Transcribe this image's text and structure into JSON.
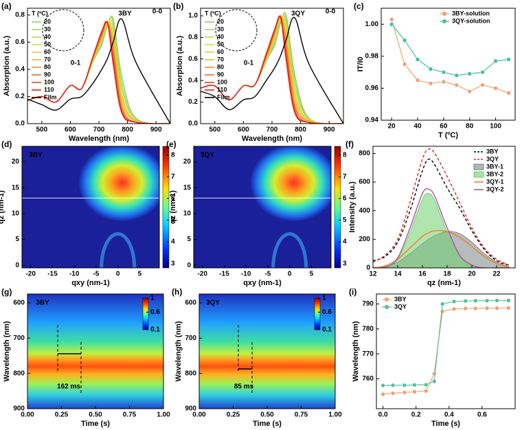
{
  "chart_data": [
    {
      "type": "line",
      "label": "(a)",
      "legend": "upper left",
      "legend_title": "T (ºC)",
      "xlabel": "Wavelength (nm)",
      "ylabel": "Absorption (a.u.)",
      "annotations": [
        "3BY",
        "0-0",
        "0-1"
      ],
      "xlim": [
        450,
        950
      ],
      "xticks": [
        500,
        600,
        700,
        800,
        900
      ],
      "ylim": [
        0,
        0.85
      ],
      "yticks": [
        {
          "value": 0,
          "label": "0.0"
        },
        0.2,
        0.4,
        0.6,
        0.8
      ],
      "x": [
        450,
        500,
        550,
        600,
        640,
        680,
        710,
        730,
        750,
        780,
        830,
        950
      ],
      "series": [
        {
          "name": "20",
          "color": "#8fd16a",
          "values": [
            0.17,
            0.2,
            0.16,
            0.28,
            0.26,
            0.46,
            0.58,
            0.72,
            0.77,
            0.35,
            0.04,
            0
          ]
        },
        {
          "name": "30",
          "color": "#a5d65c",
          "values": [
            0.17,
            0.2,
            0.16,
            0.28,
            0.26,
            0.46,
            0.6,
            0.73,
            0.75,
            0.3,
            0.03,
            0
          ]
        },
        {
          "name": "40",
          "color": "#bcd94f",
          "values": [
            0.17,
            0.2,
            0.16,
            0.28,
            0.26,
            0.47,
            0.61,
            0.74,
            0.72,
            0.26,
            0.03,
            0
          ]
        },
        {
          "name": "50",
          "color": "#d3d844",
          "values": [
            0.17,
            0.2,
            0.16,
            0.28,
            0.26,
            0.47,
            0.62,
            0.75,
            0.68,
            0.22,
            0.02,
            0
          ]
        },
        {
          "name": "60",
          "color": "#e6cc3a",
          "values": [
            0.17,
            0.2,
            0.16,
            0.28,
            0.26,
            0.48,
            0.63,
            0.75,
            0.64,
            0.19,
            0.02,
            0
          ]
        },
        {
          "name": "70",
          "color": "#f0b030",
          "values": [
            0.17,
            0.2,
            0.16,
            0.28,
            0.26,
            0.48,
            0.64,
            0.75,
            0.6,
            0.16,
            0.02,
            0
          ]
        },
        {
          "name": "80",
          "color": "#f29028",
          "values": [
            0.17,
            0.2,
            0.16,
            0.28,
            0.26,
            0.49,
            0.65,
            0.75,
            0.56,
            0.13,
            0.01,
            0
          ]
        },
        {
          "name": "90",
          "color": "#f06a22",
          "values": [
            0.17,
            0.2,
            0.16,
            0.28,
            0.26,
            0.49,
            0.66,
            0.74,
            0.52,
            0.11,
            0.01,
            0
          ]
        },
        {
          "name": "100",
          "color": "#ea4420",
          "values": [
            0.17,
            0.2,
            0.16,
            0.28,
            0.26,
            0.5,
            0.67,
            0.74,
            0.48,
            0.09,
            0.01,
            0
          ]
        },
        {
          "name": "110",
          "color": "#e0201c",
          "values": [
            0.17,
            0.2,
            0.16,
            0.28,
            0.26,
            0.5,
            0.68,
            0.74,
            0.44,
            0.08,
            0.01,
            0
          ]
        },
        {
          "name": "Film",
          "color": "#000000",
          "values": [
            0.18,
            0.14,
            0.1,
            0.18,
            0.2,
            0.3,
            0.4,
            0.48,
            0.6,
            0.77,
            0.45,
            0
          ]
        }
      ]
    },
    {
      "type": "line",
      "label": "(b)",
      "legend": "upper left",
      "legend_title": "T (ºC)",
      "xlabel": "Wavelength (nm)",
      "ylabel": "Absorption (a.u.)",
      "annotations": [
        "3QY",
        "0-0",
        "0-1"
      ],
      "xlim": [
        450,
        950
      ],
      "xticks": [
        500,
        600,
        700,
        800,
        900
      ],
      "ylim": [
        0,
        1.07
      ],
      "yticks": [
        {
          "value": 0,
          "label": "0.0"
        },
        0.2,
        0.4,
        0.6,
        0.8,
        {
          "value": 1,
          "label": "1.0"
        }
      ],
      "x": [
        450,
        500,
        550,
        600,
        640,
        680,
        710,
        730,
        750,
        780,
        830,
        950
      ],
      "series": [
        {
          "name": "20",
          "color": "#8fd16a",
          "values": [
            0.33,
            0.35,
            0.22,
            0.35,
            0.36,
            0.58,
            0.73,
            0.93,
            1.0,
            0.45,
            0.05,
            0
          ]
        },
        {
          "name": "30",
          "color": "#a5d65c",
          "values": [
            0.33,
            0.35,
            0.22,
            0.35,
            0.36,
            0.58,
            0.75,
            0.95,
            0.97,
            0.4,
            0.04,
            0
          ]
        },
        {
          "name": "40",
          "color": "#bcd94f",
          "values": [
            0.33,
            0.35,
            0.22,
            0.35,
            0.36,
            0.59,
            0.77,
            0.97,
            0.93,
            0.35,
            0.04,
            0
          ]
        },
        {
          "name": "50",
          "color": "#d3d844",
          "values": [
            0.33,
            0.35,
            0.22,
            0.35,
            0.36,
            0.6,
            0.79,
            0.99,
            0.88,
            0.3,
            0.03,
            0
          ]
        },
        {
          "name": "60",
          "color": "#e6cc3a",
          "values": [
            0.33,
            0.35,
            0.22,
            0.35,
            0.36,
            0.6,
            0.81,
            1.0,
            0.83,
            0.26,
            0.03,
            0
          ]
        },
        {
          "name": "70",
          "color": "#f0b030",
          "values": [
            0.33,
            0.35,
            0.22,
            0.35,
            0.36,
            0.61,
            0.83,
            1.0,
            0.78,
            0.22,
            0.02,
            0
          ]
        },
        {
          "name": "80",
          "color": "#f29028",
          "values": [
            0.33,
            0.35,
            0.22,
            0.35,
            0.36,
            0.62,
            0.85,
            1.0,
            0.73,
            0.18,
            0.02,
            0
          ]
        },
        {
          "name": "90",
          "color": "#f06a22",
          "values": [
            0.33,
            0.35,
            0.22,
            0.35,
            0.36,
            0.63,
            0.86,
            0.99,
            0.68,
            0.15,
            0.01,
            0
          ]
        },
        {
          "name": "100",
          "color": "#ea4420",
          "values": [
            0.33,
            0.35,
            0.22,
            0.35,
            0.36,
            0.64,
            0.87,
            0.99,
            0.63,
            0.12,
            0.01,
            0
          ]
        },
        {
          "name": "110",
          "color": "#e0201c",
          "values": [
            0.33,
            0.35,
            0.22,
            0.35,
            0.36,
            0.65,
            0.88,
            0.98,
            0.58,
            0.1,
            0.01,
            0
          ]
        },
        {
          "name": "Film",
          "color": "#000000",
          "values": [
            0.3,
            0.25,
            0.13,
            0.22,
            0.25,
            0.4,
            0.52,
            0.63,
            0.78,
            0.98,
            0.55,
            0
          ]
        }
      ]
    },
    {
      "type": "scatter",
      "label": "(c)",
      "legend": "upper right",
      "xlabel": "T (ºC)",
      "ylabel": "IT/I0",
      "xlim": [
        12,
        115
      ],
      "xticks": [
        20,
        40,
        60,
        80,
        100
      ],
      "ylim": [
        0.94,
        1.01
      ],
      "yticks": [
        0.94,
        0.96,
        0.98,
        {
          "value": 1,
          "label": "1.00"
        }
      ],
      "x": [
        20,
        30,
        40,
        50,
        60,
        70,
        80,
        90,
        100,
        110
      ],
      "series": [
        {
          "name": "3BY-solution",
          "color": "#f0a070",
          "values": [
            1.003,
            0.975,
            0.965,
            0.963,
            0.964,
            0.962,
            0.958,
            0.962,
            0.96,
            0.957
          ]
        },
        {
          "name": "3QY-solution",
          "color": "#40c0a0",
          "values": [
            1.0,
            0.99,
            0.978,
            0.972,
            0.97,
            0.968,
            0.969,
            0.97,
            0.977,
            0.978
          ]
        }
      ]
    },
    {
      "type": "heatmap",
      "label": "(d)",
      "annotations": [
        "3BY"
      ],
      "xlabel": "qxy (nm-1)",
      "ylabel": "qz (nm-1)",
      "xlim": [
        -22,
        9.5
      ],
      "xticks": [
        -20,
        -15,
        -10,
        -5,
        0,
        5
      ],
      "ylim": [
        -0.5,
        23
      ],
      "yticks": [
        0,
        5,
        10,
        15,
        20
      ],
      "colorbar_lim": [
        2.8,
        8.4
      ],
      "colorbar_ticks": [
        3,
        4,
        5,
        6,
        7,
        8
      ]
    },
    {
      "type": "heatmap",
      "label": "(e)",
      "annotations": [
        "3QY"
      ],
      "xlabel": "qxy (nm-1)",
      "ylabel": "qz (nm-1)",
      "xlim": [
        -22,
        9.5
      ],
      "xticks": [
        -20,
        -15,
        -10,
        -5,
        0,
        5
      ],
      "ylim": [
        -0.5,
        23
      ],
      "yticks": [
        0,
        5,
        10,
        15,
        20
      ],
      "colorbar_lim": [
        2.8,
        8.4
      ],
      "colorbar_ticks": [
        3,
        4,
        5,
        6,
        7,
        8
      ]
    },
    {
      "type": "line",
      "label": "(f)",
      "legend": "upper right",
      "xlabel": "qz (nm-1)",
      "ylabel": "Intensity (a.u.)",
      "xlim": [
        12,
        23.5
      ],
      "xticks": [
        12,
        14,
        16,
        18,
        20,
        22
      ],
      "ylim": [
        0,
        850
      ],
      "yticks": [
        0,
        200,
        400,
        600,
        800
      ],
      "x": [
        12,
        13,
        14,
        15,
        16,
        16.5,
        17,
        18,
        19,
        20,
        21,
        22,
        23
      ],
      "series": [
        {
          "name": "3BY",
          "color": "#000000",
          "style": "dashed",
          "values": [
            50,
            80,
            180,
            400,
            680,
            760,
            720,
            560,
            420,
            260,
            130,
            50,
            20
          ]
        },
        {
          "name": "3QY",
          "color": "#e02020",
          "style": "dashed",
          "values": [
            40,
            90,
            200,
            460,
            760,
            830,
            800,
            640,
            460,
            280,
            140,
            60,
            20
          ]
        },
        {
          "name": "3BY-1",
          "color": "#7a8585",
          "style": "area",
          "values": [
            0,
            10,
            40,
            100,
            170,
            200,
            225,
            255,
            240,
            180,
            100,
            40,
            10
          ]
        },
        {
          "name": "3BY-2",
          "color": "#6fcf6f",
          "style": "area",
          "values": [
            0,
            5,
            60,
            250,
            480,
            520,
            470,
            250,
            80,
            15,
            0,
            0,
            0
          ]
        },
        {
          "name": "3QY-1",
          "color": "#f08020",
          "style": "solid",
          "values": [
            0,
            15,
            60,
            140,
            220,
            245,
            260,
            255,
            215,
            150,
            80,
            30,
            5
          ]
        },
        {
          "name": "3QY-2",
          "color": "#b050a0",
          "style": "solid",
          "values": [
            0,
            5,
            70,
            280,
            520,
            550,
            500,
            280,
            90,
            20,
            0,
            0,
            0
          ]
        }
      ]
    },
    {
      "type": "heatmap",
      "label": "(g)",
      "annotations": [
        "3BY",
        "162 ms"
      ],
      "xlabel": "Time (s)",
      "ylabel": "Wavelength (nm)",
      "xlim": [
        0,
        1
      ],
      "xticks": [
        {
          "value": 0,
          "label": "0.00"
        },
        0.25,
        {
          "value": 0.5,
          "label": "0.50"
        },
        0.75,
        {
          "value": 1,
          "label": "1.00"
        }
      ],
      "ylim": [
        900,
        575
      ],
      "yticks": [
        600,
        700,
        800,
        900
      ],
      "colorbar_lim": [
        0.1,
        1
      ],
      "colorbar_ticks": [
        0.1,
        0.6,
        1
      ]
    },
    {
      "type": "heatmap",
      "label": "(h)",
      "annotations": [
        "3QY",
        "85 ms"
      ],
      "xlabel": "Time (s)",
      "ylabel": "Wavelength (nm)",
      "xlim": [
        0,
        1
      ],
      "xticks": [
        {
          "value": 0,
          "label": "0.00"
        },
        0.25,
        {
          "value": 0.5,
          "label": "0.50"
        },
        0.75,
        {
          "value": 1,
          "label": "1.00"
        }
      ],
      "ylim": [
        900,
        575
      ],
      "yticks": [
        600,
        700,
        800,
        900
      ],
      "colorbar_lim": [
        0.1,
        1
      ],
      "colorbar_ticks": [
        0.1,
        0.6,
        1
      ]
    },
    {
      "type": "scatter",
      "label": "(i)",
      "legend": "upper left",
      "xlabel": "Time (s)",
      "ylabel": "Wavelength (nm)",
      "xlim": [
        -0.04,
        0.8
      ],
      "xticks": [
        {
          "value": 0,
          "label": "0.0"
        },
        0.2,
        0.4,
        0.6
      ],
      "ylim": [
        748,
        794
      ],
      "yticks": [
        760,
        770,
        780,
        790
      ],
      "x": [
        0,
        0.06,
        0.13,
        0.19,
        0.26,
        0.31,
        0.36,
        0.43,
        0.5,
        0.56,
        0.63,
        0.69,
        0.76
      ],
      "series": [
        {
          "name": "3BY",
          "color": "#f0a070",
          "values": [
            753.8,
            754.2,
            754.5,
            754.8,
            755.1,
            762,
            787,
            788,
            788.2,
            788.2,
            788.3,
            788.3,
            788.4
          ]
        },
        {
          "name": "3QY",
          "color": "#50c0a0",
          "values": [
            757.3,
            757.4,
            757.4,
            757.5,
            757.6,
            759,
            790,
            791,
            791.2,
            791.3,
            791.3,
            791.4,
            791.4
          ]
        }
      ]
    }
  ]
}
